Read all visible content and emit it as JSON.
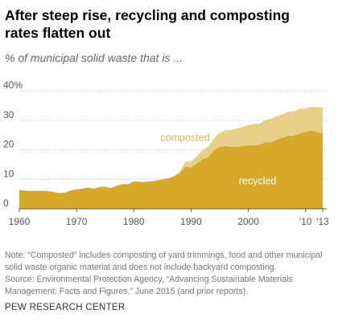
{
  "chart_data": {
    "type": "stacked_area",
    "title": "After steep rise, recycling and composting rates flatten out",
    "subtitle": "% of municipal solid waste that is ...",
    "x": [
      1960,
      1961,
      1962,
      1963,
      1964,
      1965,
      1966,
      1967,
      1968,
      1969,
      1970,
      1971,
      1972,
      1973,
      1974,
      1975,
      1976,
      1977,
      1978,
      1979,
      1980,
      1981,
      1982,
      1983,
      1984,
      1985,
      1986,
      1987,
      1988,
      1989,
      1990,
      1991,
      1992,
      1993,
      1994,
      1995,
      1996,
      1997,
      1998,
      1999,
      2000,
      2001,
      2002,
      2003,
      2004,
      2005,
      2006,
      2007,
      2008,
      2009,
      2010,
      2011,
      2012,
      2013
    ],
    "series": [
      {
        "name": "recycled",
        "color": "#d6a92a",
        "label_color": "#ffffff",
        "values": [
          6.4,
          6.2,
          6.0,
          6.1,
          6.1,
          6.0,
          5.7,
          5.3,
          5.5,
          6.2,
          6.6,
          6.8,
          7.2,
          6.8,
          7.4,
          7.5,
          7.0,
          7.8,
          8.4,
          8.3,
          9.3,
          9.1,
          9.1,
          9.3,
          9.6,
          10.0,
          10.3,
          11.0,
          12.0,
          14.2,
          14.0,
          15.3,
          16.8,
          17.5,
          19.8,
          21.0,
          21.3,
          21.0,
          21.0,
          21.3,
          21.5,
          21.5,
          21.8,
          22.5,
          22.5,
          23.5,
          24.0,
          24.8,
          24.8,
          25.5,
          26.0,
          26.5,
          26.0,
          25.5
        ]
      },
      {
        "name": "composted",
        "color": "#e8cf88",
        "label_color": "#d9b456",
        "values": [
          0,
          0,
          0,
          0,
          0,
          0,
          0,
          0,
          0,
          0,
          0,
          0,
          0,
          0,
          0,
          0,
          0,
          0,
          0,
          0,
          0,
          0,
          0,
          0,
          0,
          0,
          0,
          0,
          0.5,
          1.8,
          2.0,
          2.5,
          3.0,
          3.5,
          4.0,
          4.7,
          5.3,
          5.7,
          6.2,
          6.4,
          6.9,
          7.2,
          7.0,
          7.6,
          8.0,
          7.9,
          8.0,
          8.1,
          8.3,
          8.4,
          8.0,
          8.0,
          8.5,
          8.8
        ]
      }
    ],
    "xlim": [
      1960,
      2013
    ],
    "xticks": [
      1960,
      1970,
      1980,
      1990,
      2000,
      {
        "value": 2010,
        "label": "'10"
      },
      {
        "value": 2013,
        "label": "'13"
      }
    ],
    "ylim": [
      0,
      40
    ],
    "yticks": [
      0,
      10,
      20,
      30,
      {
        "value": 40,
        "label": "40%"
      }
    ],
    "grid": true,
    "note": "Note: “Composted” includes composting of yard trimmings, food and other municipal solid waste organic material and does not include backyard composting.",
    "source": "Source: Environmental Protection Agency, “Advancing Sustainable Materials Management: Facts and Figures,” June 2015 (and prior reports).",
    "footer": "PEW RESEARCH CENTER"
  }
}
